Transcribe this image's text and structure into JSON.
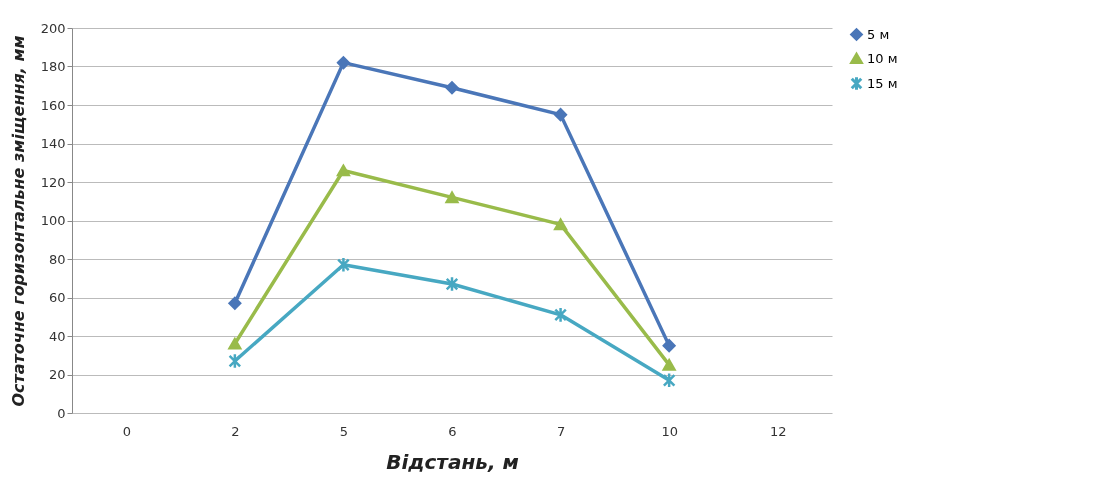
{
  "chart_data": {
    "type": "line",
    "xlabel": "Відстань, м",
    "ylabel": "Остаточне горизонтальне зміщення, мм",
    "categories": [
      "0",
      "2",
      "5",
      "6",
      "7",
      "10",
      "12"
    ],
    "ylim": [
      0,
      200
    ],
    "yticks": [
      0,
      20,
      40,
      60,
      80,
      100,
      120,
      140,
      160,
      180,
      200
    ],
    "grid": "y",
    "legend": "right",
    "series": [
      {
        "name": "5 м",
        "color": "#4a76b8",
        "marker": "diamond",
        "values": [
          null,
          57,
          182,
          169,
          155,
          35,
          null
        ]
      },
      {
        "name": "10 м",
        "color": "#99bb4a",
        "marker": "triangle",
        "values": [
          null,
          36,
          126,
          112,
          98,
          25,
          null
        ]
      },
      {
        "name": "15 м",
        "color": "#47a8c2",
        "marker": "cross",
        "values": [
          null,
          27,
          77,
          67,
          51,
          17,
          null
        ]
      }
    ]
  }
}
